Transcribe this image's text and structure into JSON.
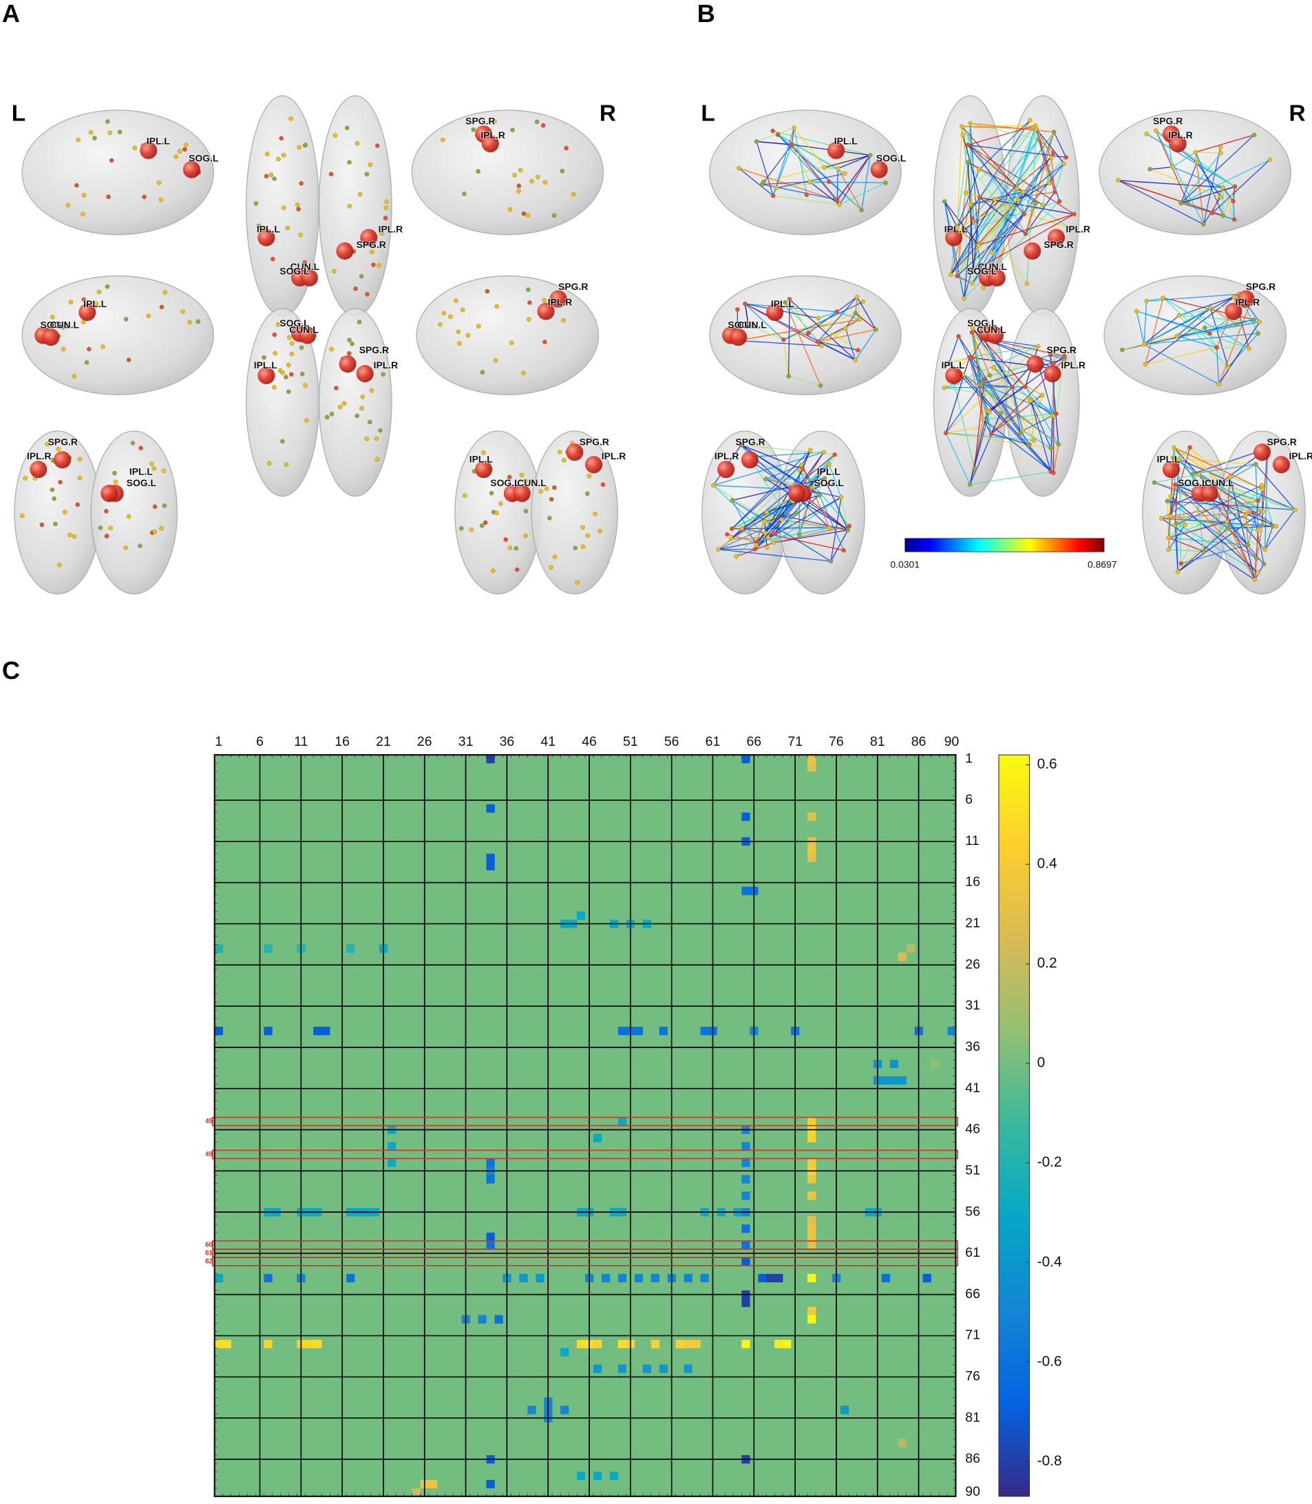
{
  "panel_a": {
    "label": "A",
    "left_label": "L",
    "right_label": "R",
    "views": [
      [
        "IPL.L",
        "SOG.L"
      ],
      [
        "IPL.L",
        "IPL.R",
        "SPG.R",
        "CUN.L",
        "SOG.L"
      ],
      [
        "SPG.R",
        "IPL.R"
      ],
      [
        "SOG.L",
        "CUN.L",
        "IPL.L"
      ],
      [
        "SOG.L",
        "CUN.L",
        "SPG.R",
        "IPL.R",
        "IPL.L"
      ],
      [
        "SPG.R",
        "IPL.R"
      ],
      [
        "SPG.R",
        "IPL.R",
        "IPL.L",
        "SOG.L"
      ],
      [
        "SPG.R",
        "IPL.L",
        "IPL.R",
        "SOG.L",
        "CUN.L"
      ]
    ]
  },
  "panel_b": {
    "label": "B",
    "left_label": "L",
    "right_label": "R",
    "views": [
      [
        "IPL.L",
        "SOG.L"
      ],
      [
        "IPL.L",
        "IPL.R",
        "SPG.R",
        "CUN.L",
        "SOG.L"
      ],
      [
        "SPG.R",
        "IPL.R"
      ],
      [
        "SOG.L",
        "CUN.L",
        "IPL.L"
      ],
      [
        "SOG.L",
        "CUN.L",
        "SPG.R",
        "IPL.R",
        "IPL.L"
      ],
      [
        "SPG.R",
        "IPL.R"
      ],
      [
        "SPG.R",
        "IPL.R",
        "IPL.L",
        "SOG.L"
      ],
      [
        "SPG.R",
        "IPL.L",
        "IPL.R",
        "SOG.L",
        "CUN.L"
      ]
    ],
    "colorbar": {
      "min": 0.0301,
      "max": 0.8697,
      "colormap": [
        "#00008f",
        "#0000ff",
        "#0080ff",
        "#00ffff",
        "#80ff80",
        "#ffff00",
        "#ff8000",
        "#ff0000",
        "#800000"
      ]
    }
  },
  "panel_c_label": "C",
  "chart_data": {
    "type": "heatmap",
    "xlim": [
      1,
      90
    ],
    "ylim": [
      1,
      90
    ],
    "xticks": [
      1,
      6,
      11,
      16,
      21,
      26,
      31,
      36,
      41,
      46,
      51,
      56,
      61,
      66,
      71,
      76,
      81,
      86,
      90
    ],
    "yticks": [
      1,
      6,
      11,
      16,
      21,
      26,
      31,
      36,
      41,
      46,
      51,
      56,
      61,
      66,
      71,
      76,
      81,
      86,
      90
    ],
    "grid": true,
    "zlim": [
      -0.87,
      0.62
    ],
    "zticks": [
      0.6,
      0.4,
      0.2,
      0,
      -0.2,
      -0.4,
      -0.6,
      -0.8
    ],
    "colormap": [
      "#352a87",
      "#0363e1",
      "#1485d4",
      "#06a7c6",
      "#38b99e",
      "#92bf73",
      "#d9ba56",
      "#fcce2e",
      "#f9fb0e"
    ],
    "background_value": 0,
    "highlighted_rows": [
      45,
      49,
      60,
      61,
      62
    ],
    "cells": [
      [
        1,
        73,
        0.35
      ],
      [
        2,
        73,
        0.3
      ],
      [
        8,
        73,
        0.3
      ],
      [
        11,
        73,
        0.3
      ],
      [
        12,
        73,
        0.35
      ],
      [
        13,
        73,
        0.3
      ],
      [
        45,
        73,
        0.45
      ],
      [
        46,
        73,
        0.5
      ],
      [
        47,
        73,
        0.45
      ],
      [
        50,
        73,
        0.4
      ],
      [
        51,
        73,
        0.45
      ],
      [
        52,
        73,
        0.35
      ],
      [
        54,
        73,
        0.35
      ],
      [
        57,
        73,
        0.3
      ],
      [
        58,
        73,
        0.35
      ],
      [
        59,
        73,
        0.35
      ],
      [
        60,
        73,
        0.3
      ],
      [
        64,
        73,
        0.6
      ],
      [
        68,
        73,
        0.4
      ],
      [
        69,
        73,
        0.6
      ],
      [
        1,
        65,
        -0.7
      ],
      [
        8,
        65,
        -0.7
      ],
      [
        11,
        65,
        -0.7
      ],
      [
        17,
        65,
        -0.6
      ],
      [
        17,
        66,
        -0.6
      ],
      [
        46,
        65,
        -0.5
      ],
      [
        48,
        65,
        -0.5
      ],
      [
        50,
        65,
        -0.5
      ],
      [
        52,
        65,
        -0.5
      ],
      [
        54,
        65,
        -0.5
      ],
      [
        56,
        65,
        -0.5
      ],
      [
        58,
        65,
        -0.6
      ],
      [
        60,
        65,
        -0.6
      ],
      [
        62,
        65,
        -0.7
      ],
      [
        66,
        65,
        -0.8
      ],
      [
        67,
        65,
        -0.8
      ],
      [
        86,
        65,
        -0.8
      ],
      [
        1,
        34,
        -0.8
      ],
      [
        7,
        34,
        -0.7
      ],
      [
        13,
        34,
        -0.7
      ],
      [
        14,
        34,
        -0.7
      ],
      [
        50,
        34,
        -0.6
      ],
      [
        51,
        34,
        -0.5
      ],
      [
        52,
        34,
        -0.6
      ],
      [
        59,
        34,
        -0.7
      ],
      [
        60,
        34,
        -0.6
      ],
      [
        86,
        34,
        -0.7
      ],
      [
        89,
        34,
        -0.7
      ],
      [
        72,
        1,
        0.5
      ],
      [
        72,
        2,
        0.5
      ],
      [
        72,
        7,
        0.45
      ],
      [
        72,
        11,
        0.45
      ],
      [
        72,
        12,
        0.45
      ],
      [
        72,
        13,
        0.5
      ],
      [
        72,
        45,
        0.5
      ],
      [
        72,
        46,
        0.5
      ],
      [
        72,
        47,
        0.45
      ],
      [
        72,
        50,
        0.5
      ],
      [
        72,
        51,
        0.45
      ],
      [
        72,
        54,
        0.45
      ],
      [
        72,
        57,
        0.45
      ],
      [
        72,
        58,
        0.4
      ],
      [
        72,
        59,
        0.4
      ],
      [
        72,
        65,
        0.6
      ],
      [
        72,
        69,
        0.55
      ],
      [
        72,
        70,
        0.6
      ],
      [
        64,
        36,
        -0.4
      ],
      [
        64,
        38,
        -0.4
      ],
      [
        64,
        40,
        -0.4
      ],
      [
        64,
        46,
        -0.5
      ],
      [
        64,
        48,
        -0.5
      ],
      [
        64,
        50,
        -0.5
      ],
      [
        64,
        52,
        -0.5
      ],
      [
        64,
        54,
        -0.5
      ],
      [
        64,
        56,
        -0.5
      ],
      [
        64,
        58,
        -0.5
      ],
      [
        64,
        60,
        -0.5
      ],
      [
        64,
        67,
        -0.7
      ],
      [
        64,
        68,
        -0.8
      ],
      [
        64,
        69,
        -0.8
      ],
      [
        64,
        1,
        -0.3
      ],
      [
        64,
        7,
        -0.6
      ],
      [
        64,
        11,
        -0.5
      ],
      [
        64,
        17,
        -0.6
      ],
      [
        64,
        76,
        -0.5
      ],
      [
        64,
        82,
        -0.6
      ],
      [
        64,
        87,
        -0.7
      ],
      [
        56,
        7,
        -0.3
      ],
      [
        56,
        8,
        -0.3
      ],
      [
        56,
        11,
        -0.3
      ],
      [
        56,
        12,
        -0.3
      ],
      [
        56,
        13,
        -0.3
      ],
      [
        56,
        17,
        -0.3
      ],
      [
        56,
        18,
        -0.3
      ],
      [
        56,
        19,
        -0.3
      ],
      [
        56,
        20,
        -0.3
      ],
      [
        56,
        45,
        -0.3
      ],
      [
        56,
        46,
        -0.3
      ],
      [
        56,
        49,
        -0.3
      ],
      [
        56,
        50,
        -0.3
      ],
      [
        56,
        60,
        -0.3
      ],
      [
        56,
        62,
        -0.3
      ],
      [
        56,
        64,
        -0.3
      ],
      [
        56,
        80,
        -0.3
      ],
      [
        56,
        81,
        -0.3
      ],
      [
        34,
        1,
        -0.7
      ],
      [
        34,
        7,
        -0.7
      ],
      [
        34,
        13,
        -0.7
      ],
      [
        34,
        14,
        -0.7
      ],
      [
        34,
        50,
        -0.6
      ],
      [
        34,
        51,
        -0.6
      ],
      [
        34,
        52,
        -0.6
      ],
      [
        34,
        55,
        -0.6
      ],
      [
        34,
        60,
        -0.6
      ],
      [
        34,
        61,
        -0.6
      ],
      [
        34,
        66,
        -0.5
      ],
      [
        34,
        71,
        -0.6
      ],
      [
        34,
        86,
        -0.6
      ],
      [
        34,
        90,
        -0.5
      ],
      [
        25,
        84,
        0.25
      ],
      [
        24,
        85,
        0.15
      ],
      [
        89,
        26,
        0.35
      ],
      [
        89,
        27,
        0.35
      ],
      [
        90,
        25,
        0.2
      ],
      [
        40,
        81,
        -0.4
      ],
      [
        40,
        82,
        -0.4
      ],
      [
        40,
        83,
        -0.4
      ],
      [
        40,
        84,
        -0.4
      ],
      [
        38,
        81,
        -0.4
      ],
      [
        38,
        83,
        -0.4
      ],
      [
        38,
        88,
        0.05
      ],
      [
        21,
        43,
        -0.3
      ],
      [
        21,
        44,
        -0.3
      ],
      [
        20,
        45,
        -0.3
      ],
      [
        21,
        49,
        -0.3
      ],
      [
        21,
        51,
        -0.3
      ],
      [
        21,
        53,
        -0.3
      ],
      [
        24,
        1,
        -0.2
      ],
      [
        24,
        7,
        -0.2
      ],
      [
        24,
        11,
        -0.2
      ],
      [
        24,
        17,
        -0.2
      ],
      [
        24,
        21,
        -0.3
      ],
      [
        79,
        41,
        -0.5
      ],
      [
        80,
        41,
        -0.5
      ],
      [
        81,
        41,
        -0.5
      ],
      [
        80,
        39,
        -0.5
      ],
      [
        80,
        43,
        -0.5
      ],
      [
        88,
        45,
        -0.3
      ],
      [
        88,
        47,
        -0.3
      ],
      [
        88,
        49,
        -0.3
      ],
      [
        69,
        31,
        -0.5
      ],
      [
        69,
        33,
        -0.5
      ],
      [
        69,
        35,
        -0.6
      ],
      [
        46,
        22,
        -0.3
      ],
      [
        48,
        22,
        -0.3
      ],
      [
        50,
        22,
        -0.3
      ],
      [
        45,
        50,
        -0.3
      ],
      [
        47,
        47,
        -0.3
      ],
      [
        75,
        47,
        -0.4
      ],
      [
        75,
        50,
        -0.4
      ],
      [
        75,
        53,
        -0.4
      ],
      [
        75,
        55,
        -0.4
      ],
      [
        75,
        58,
        -0.4
      ],
      [
        73,
        43,
        -0.3
      ],
      [
        80,
        77,
        -0.4
      ],
      [
        84,
        84,
        0.15
      ]
    ]
  }
}
